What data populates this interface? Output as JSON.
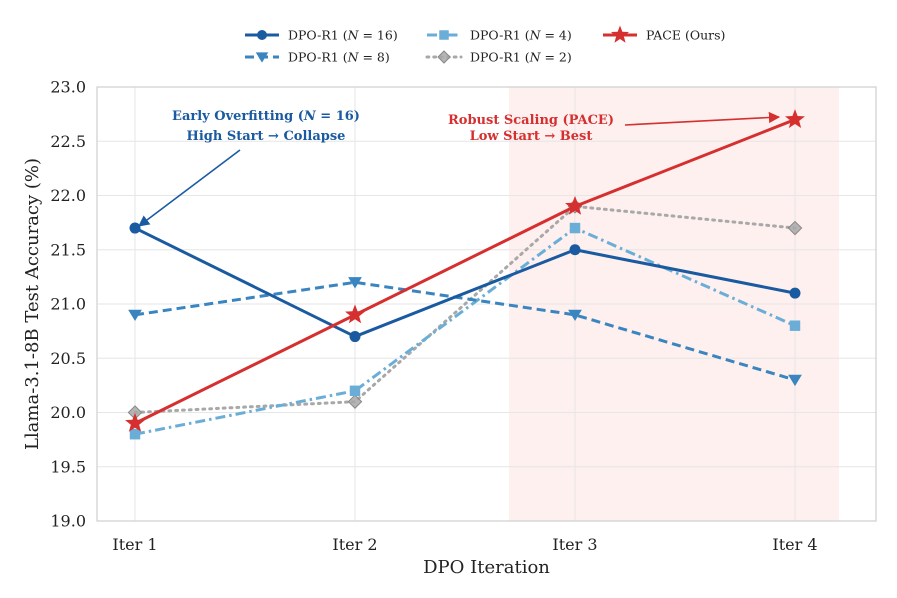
{
  "chart_data": {
    "type": "line",
    "xlabel": "DPO Iteration",
    "ylabel": "Llama-3.1-8B Test Accuracy (%)",
    "categories": [
      "Iter 1",
      "Iter 2",
      "Iter 3",
      "Iter 4"
    ],
    "ylim": [
      19.0,
      23.0
    ],
    "yticks": [
      19.0,
      19.5,
      20.0,
      20.5,
      21.0,
      21.5,
      22.0,
      22.5,
      23.0
    ],
    "ytick_labels": [
      "19.0",
      "19.5",
      "20.0",
      "20.5",
      "21.0",
      "21.5",
      "22.0",
      "22.5",
      "23.0"
    ],
    "grid": true,
    "legend_position": "top-center",
    "highlight_region": {
      "from_category": 2.7,
      "to_category": 4.2,
      "color": "#fdf0ee"
    },
    "series": [
      {
        "name": "DPO-R1 (",
        "name_var": "N",
        "name_tail": " = 16)",
        "values": [
          21.7,
          20.7,
          21.5,
          21.1
        ],
        "color": "#1a5aa0",
        "marker": "circle",
        "dash": "solid"
      },
      {
        "name": "DPO-R1 (",
        "name_var": "N",
        "name_tail": " = 8)",
        "values": [
          20.9,
          21.2,
          20.9,
          20.3
        ],
        "color": "#3a85c0",
        "marker": "triangle-down",
        "dash": "dashed"
      },
      {
        "name": "DPO-R1 (",
        "name_var": "N",
        "name_tail": " = 4)",
        "values": [
          19.8,
          20.2,
          21.7,
          20.8
        ],
        "color": "#6aaed8",
        "marker": "square",
        "dash": "dashdot"
      },
      {
        "name": "DPO-R1 (",
        "name_var": "N",
        "name_tail": " = 2)",
        "values": [
          20.0,
          20.1,
          21.9,
          21.7
        ],
        "color": "#a8a8a8",
        "marker": "diamond",
        "dash": "dotted"
      },
      {
        "name": "PACE (Ours)",
        "name_var": "",
        "name_tail": "",
        "values": [
          19.9,
          20.9,
          21.9,
          22.7
        ],
        "color": "#d62f2f",
        "marker": "star",
        "dash": "solid"
      }
    ],
    "annotations": [
      {
        "line1_pre": "Early Overfitting (",
        "line1_var": "N",
        "line1_post": " = 16)",
        "line2": "High Start → Collapse",
        "color": "#1a5aa0",
        "target_category": 1,
        "target_value": 21.7
      },
      {
        "line1_pre": "Robust Scaling (PACE)",
        "line1_var": "",
        "line1_post": "",
        "line2": "Low Start → Best",
        "color": "#d62f2f",
        "target_category": 4,
        "target_value": 22.7
      }
    ]
  }
}
